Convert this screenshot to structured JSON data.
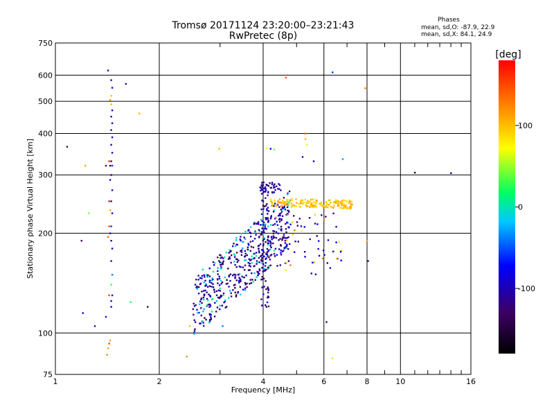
{
  "chart_data": {
    "type": "scatter",
    "title": "Tromsø 20171124 23:20:00–23:21:43",
    "subtitle": "RwPretec (8p)",
    "xlabel": "Frequency [MHz]",
    "ylabel": "Stationary phase Virtual Height [km]",
    "x_scale": "log",
    "y_scale": "log",
    "xlim": [
      1,
      16
    ],
    "ylim": [
      75,
      750
    ],
    "x_ticks": [
      1,
      2,
      4,
      6,
      8,
      10,
      16
    ],
    "x_tick_labels": [
      "1",
      "2",
      "4",
      "6",
      "8",
      "10",
      "16"
    ],
    "y_ticks": [
      75,
      100,
      200,
      300,
      400,
      500,
      600,
      750
    ],
    "y_tick_labels": [
      "75",
      "100",
      "200",
      "300",
      "400",
      "500",
      "600",
      "750"
    ],
    "grid": true,
    "stats": {
      "header": "Phases",
      "line1": "mean, sd,O: -87.9, 22.9",
      "line2": "mean, sd,X:  84.1, 24.9"
    },
    "colorbar": {
      "label": "[deg]",
      "range": [
        -180,
        180
      ],
      "ticks": [
        100,
        0,
        -100
      ],
      "tick_labels": [
        "100",
        "0",
        "-100"
      ],
      "colormap": [
        "#000000",
        "#3c0064",
        "#0000ff",
        "#00c8ff",
        "#00ff60",
        "#ffff00",
        "#ff8000",
        "#ff0000"
      ]
    },
    "series": [
      {
        "points": [
          [
            1.42,
            620,
            -110
          ],
          [
            1.45,
            580,
            -105
          ],
          [
            1.46,
            550,
            -100
          ],
          [
            1.45,
            520,
            95
          ],
          [
            1.44,
            505,
            110
          ],
          [
            1.45,
            490,
            100
          ],
          [
            1.46,
            470,
            -90
          ],
          [
            1.45,
            450,
            -100
          ],
          [
            1.46,
            430,
            -95
          ],
          [
            1.45,
            410,
            -110
          ],
          [
            1.46,
            390,
            -100
          ],
          [
            1.45,
            370,
            -90
          ],
          [
            1.46,
            350,
            -100
          ],
          [
            1.45,
            330,
            -110
          ],
          [
            1.46,
            320,
            -60
          ],
          [
            1.45,
            300,
            -100
          ],
          [
            1.44,
            290,
            -90
          ],
          [
            1.46,
            270,
            -100
          ],
          [
            1.45,
            250,
            -110
          ],
          [
            1.46,
            230,
            -95
          ],
          [
            1.45,
            210,
            -60
          ],
          [
            1.44,
            200,
            -100
          ],
          [
            1.45,
            190,
            -110
          ],
          [
            1.46,
            180,
            -90
          ],
          [
            1.45,
            165,
            -100
          ],
          [
            1.46,
            150,
            -40
          ],
          [
            1.45,
            140,
            30
          ],
          [
            1.46,
            130,
            -100
          ],
          [
            1.45,
            120,
            -90
          ],
          [
            1.43,
            330,
            160
          ],
          [
            1.44,
            320,
            -160
          ],
          [
            1.43,
            250,
            170
          ],
          [
            1.44,
            235,
            110
          ],
          [
            1.43,
            210,
            150
          ],
          [
            1.42,
            195,
            140
          ],
          [
            1.43,
            130,
            160
          ],
          [
            1.45,
            125,
            -80
          ],
          [
            1.44,
            95,
            110
          ],
          [
            1.43,
            93,
            150
          ],
          [
            1.42,
            90,
            110
          ],
          [
            1.41,
            86,
            120
          ],
          [
            1.4,
            320,
            -140
          ],
          [
            1.6,
            565,
            -110
          ],
          [
            1.08,
            365,
            -120
          ],
          [
            1.22,
            320,
            110
          ],
          [
            1.25,
            230,
            40
          ],
          [
            1.19,
            190,
            -130
          ],
          [
            1.2,
            115,
            -90
          ],
          [
            1.3,
            105,
            -110
          ],
          [
            1.4,
            112,
            -100
          ],
          [
            1.65,
            124,
            20
          ],
          [
            1.75,
            460,
            100
          ],
          [
            1.85,
            120,
            -140
          ],
          [
            2.4,
            85,
            120
          ],
          [
            2.98,
            360,
            100
          ],
          [
            4.65,
            590,
            140
          ],
          [
            6.35,
            612,
            -60
          ],
          [
            7.9,
            548,
            120
          ],
          [
            8.0,
            190,
            110
          ],
          [
            8.05,
            165,
            -110
          ],
          [
            11.0,
            305,
            -160
          ],
          [
            14.0,
            304,
            -110
          ],
          [
            6.1,
            108,
            -120
          ],
          [
            6.35,
            84,
            60
          ],
          [
            3.05,
            105,
            -40
          ],
          [
            2.45,
            105,
            100
          ],
          [
            5.3,
            400,
            140
          ],
          [
            5.3,
            385,
            100
          ],
          [
            5.35,
            370,
            60
          ],
          [
            4.1,
            362,
            70
          ],
          [
            4.2,
            360,
            -80
          ],
          [
            4.3,
            358,
            40
          ],
          [
            5.2,
            340,
            -90
          ],
          [
            5.6,
            330,
            -110
          ],
          [
            6.8,
            335,
            -30
          ]
        ]
      }
    ]
  }
}
